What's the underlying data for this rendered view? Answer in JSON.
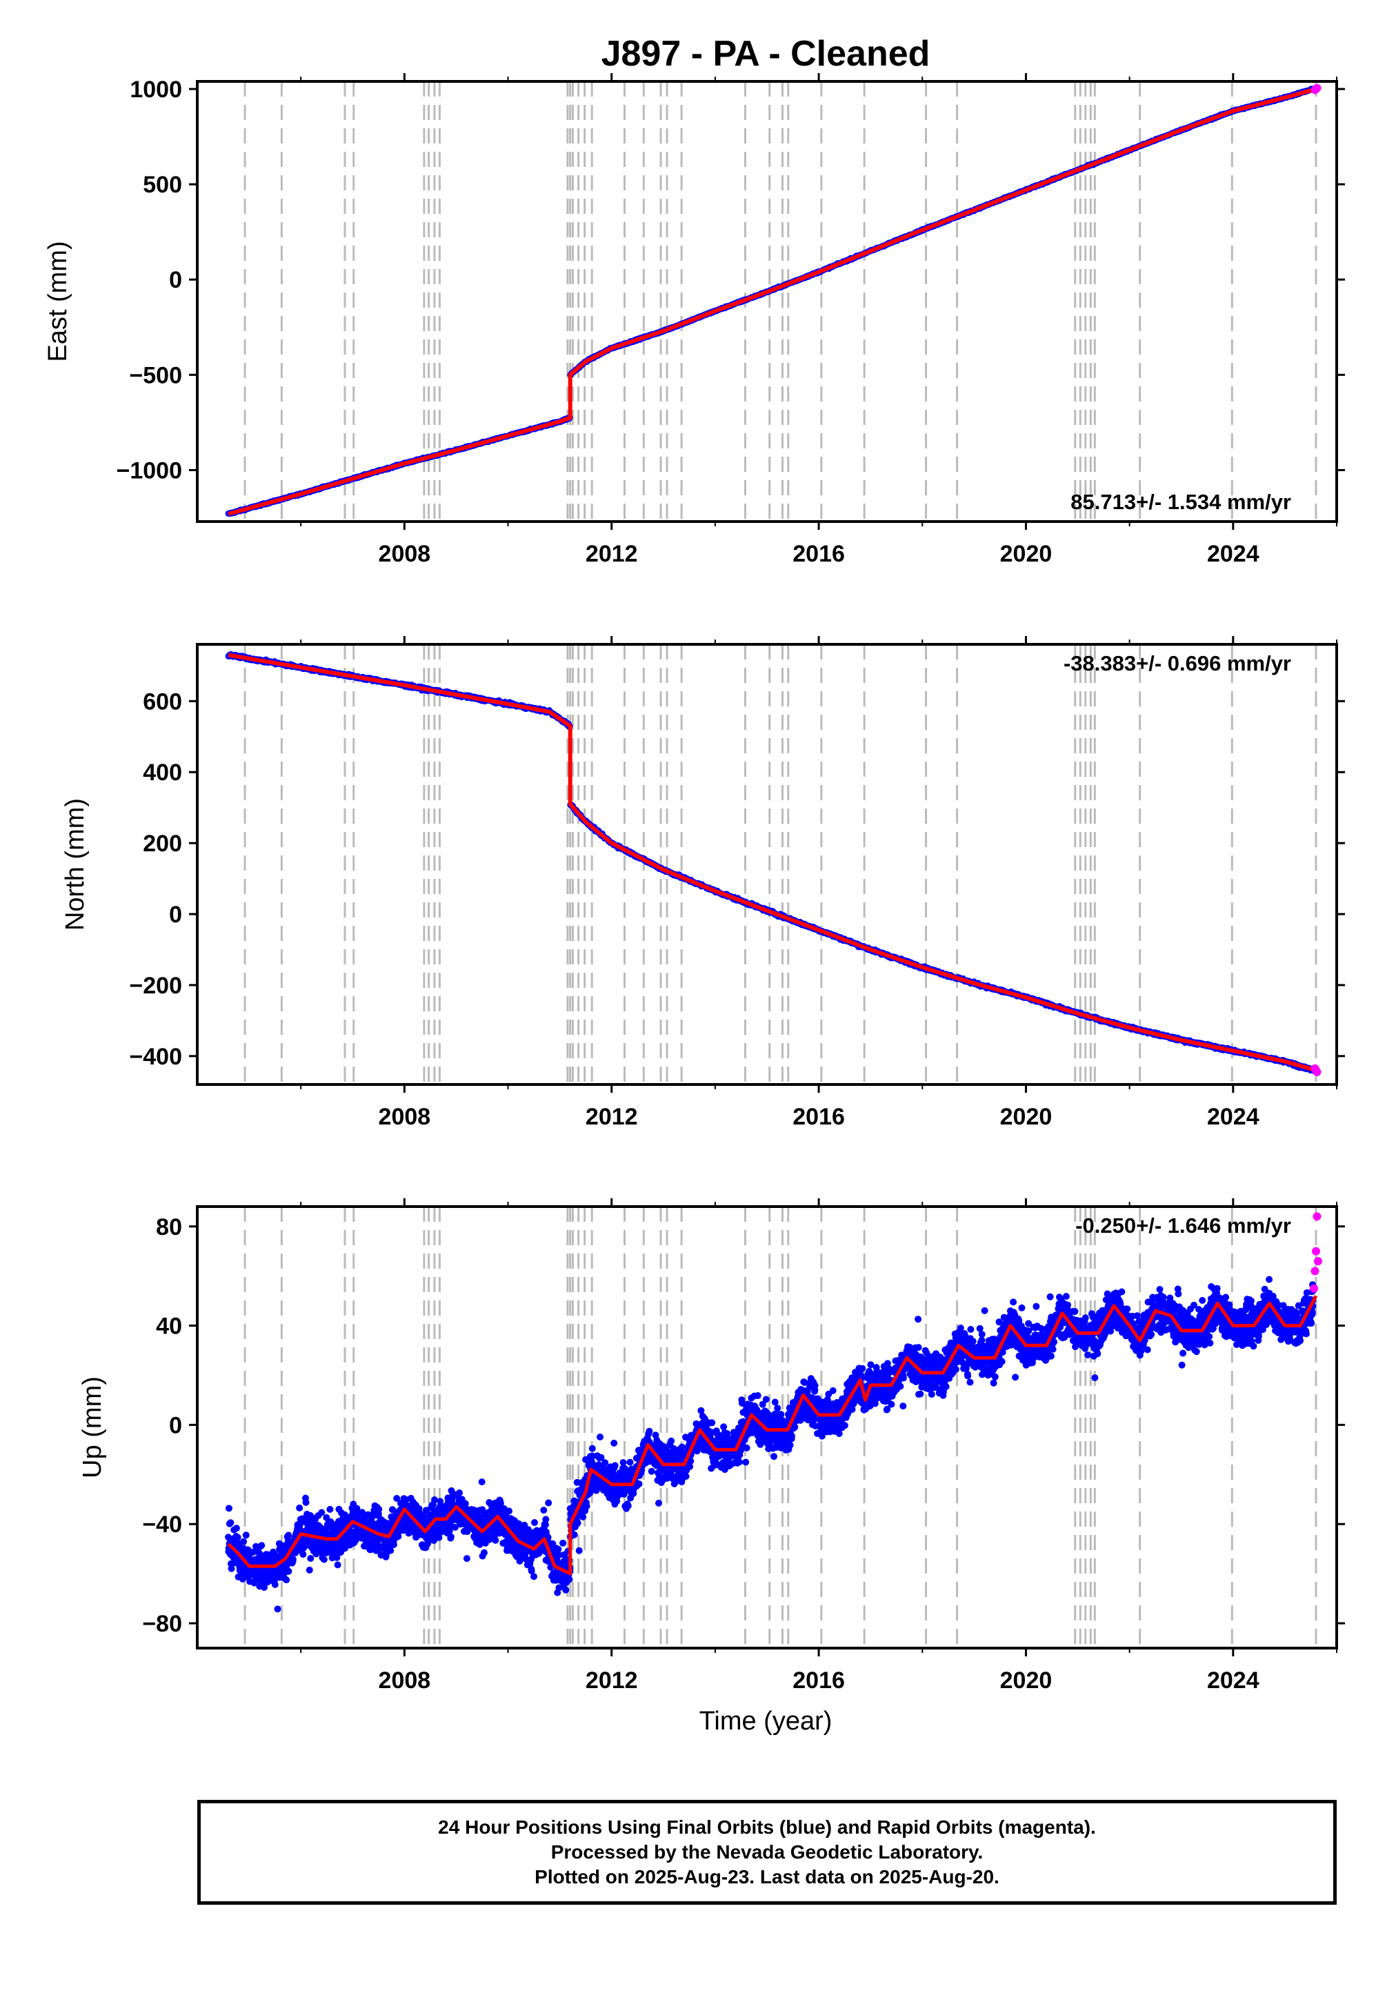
{
  "title": "J897  - PA - Cleaned",
  "x_axis_label": "Time (year)",
  "caption": {
    "line1": "24 Hour Positions Using Final Orbits (blue) and Rapid Orbits (magenta).",
    "line2": "Processed by the Nevada Geodetic Laboratory.",
    "line3": "Plotted on 2025-Aug-23. Last data on 2025-Aug-20."
  },
  "colors": {
    "final_orbits": "#0000ff",
    "rapid_orbits": "#ff00ff",
    "model_fit": "#ff0000",
    "event_lines": "#bbbbbb"
  },
  "chart_data": [
    {
      "type": "scatter",
      "panel": "east",
      "ylabel": "East (mm)",
      "xlim": [
        2004.0,
        2026.0
      ],
      "ylim": [
        -1270,
        1040
      ],
      "x_ticks": [
        2008,
        2012,
        2016,
        2020,
        2024
      ],
      "y_ticks": [
        -1000,
        -500,
        0,
        500,
        1000
      ],
      "y_tick_labels": [
        "−1000",
        "−500",
        "0",
        "500",
        "1000"
      ],
      "grid": false,
      "rate_label": "85.713+/- 1.534 mm/yr",
      "rate_label_position": "bottom-right",
      "series": [
        {
          "marker": "dots",
          "color": "final_orbits",
          "x": [
            2004.6,
            2005.0,
            2006.0,
            2007.0,
            2008.0,
            2009.0,
            2010.0,
            2011.0,
            2011.2,
            2011.2,
            2011.5,
            2012.0,
            2013.0,
            2014.0,
            2015.0,
            2016.0,
            2017.0,
            2018.0,
            2019.0,
            2020.0,
            2021.0,
            2022.0,
            2023.0,
            2024.0,
            2025.0,
            2025.55
          ],
          "y": [
            -1230,
            -1200,
            -1125,
            -1045,
            -965,
            -895,
            -820,
            -745,
            -725,
            -500,
            -430,
            -360,
            -270,
            -165,
            -65,
            40,
            150,
            260,
            365,
            470,
            575,
            680,
            785,
            885,
            955,
            1000
          ]
        },
        {
          "marker": "line",
          "color": "model_fit",
          "x": [
            2004.6,
            2005.0,
            2006.0,
            2007.0,
            2008.0,
            2009.0,
            2010.0,
            2011.0,
            2011.2,
            2011.2,
            2011.5,
            2012.0,
            2013.0,
            2014.0,
            2015.0,
            2016.0,
            2017.0,
            2018.0,
            2019.0,
            2020.0,
            2021.0,
            2022.0,
            2023.0,
            2024.0,
            2025.0,
            2025.6
          ],
          "y": [
            -1230,
            -1200,
            -1125,
            -1045,
            -965,
            -895,
            -820,
            -745,
            -725,
            -500,
            -430,
            -360,
            -270,
            -165,
            -65,
            40,
            150,
            260,
            365,
            470,
            575,
            680,
            785,
            885,
            955,
            1000
          ]
        },
        {
          "marker": "dots",
          "color": "rapid_orbits",
          "x": [
            2025.58,
            2025.6,
            2025.62
          ],
          "y": [
            995,
            1000,
            1005
          ]
        }
      ]
    },
    {
      "type": "scatter",
      "panel": "north",
      "ylabel": "North (mm)",
      "xlim": [
        2004.0,
        2026.0
      ],
      "ylim": [
        -480,
        760
      ],
      "x_ticks": [
        2008,
        2012,
        2016,
        2020,
        2024
      ],
      "y_ticks": [
        -400,
        -200,
        0,
        200,
        400,
        600
      ],
      "y_tick_labels": [
        "−400",
        "−200",
        "0",
        "200",
        "400",
        "600"
      ],
      "grid": false,
      "rate_label": "-38.383+/- 0.696 mm/yr",
      "rate_label_position": "top-right",
      "series": [
        {
          "marker": "dots",
          "color": "final_orbits",
          "x": [
            2004.6,
            2005.0,
            2006.0,
            2007.0,
            2008.0,
            2009.0,
            2010.0,
            2010.8,
            2011.0,
            2011.2,
            2011.2,
            2011.5,
            2012.0,
            2013.0,
            2014.0,
            2015.0,
            2016.0,
            2017.0,
            2018.0,
            2019.0,
            2020.0,
            2021.0,
            2022.0,
            2023.0,
            2024.0,
            2025.0,
            2025.55
          ],
          "y": [
            730,
            720,
            695,
            670,
            645,
            618,
            592,
            570,
            550,
            530,
            310,
            260,
            200,
            125,
            65,
            10,
            -45,
            -100,
            -150,
            -195,
            -235,
            -280,
            -320,
            -355,
            -385,
            -415,
            -440
          ]
        },
        {
          "marker": "line",
          "color": "model_fit",
          "x": [
            2004.6,
            2005.0,
            2006.0,
            2007.0,
            2008.0,
            2009.0,
            2010.0,
            2010.8,
            2011.0,
            2011.2,
            2011.2,
            2011.5,
            2012.0,
            2013.0,
            2014.0,
            2015.0,
            2016.0,
            2017.0,
            2018.0,
            2019.0,
            2020.0,
            2021.0,
            2022.0,
            2023.0,
            2024.0,
            2025.0,
            2025.6
          ],
          "y": [
            730,
            720,
            695,
            670,
            645,
            618,
            592,
            570,
            550,
            530,
            310,
            260,
            200,
            125,
            65,
            10,
            -45,
            -100,
            -150,
            -195,
            -235,
            -280,
            -320,
            -355,
            -385,
            -415,
            -440
          ]
        },
        {
          "marker": "dots",
          "color": "rapid_orbits",
          "x": [
            2025.58,
            2025.6,
            2025.62
          ],
          "y": [
            -435,
            -440,
            -445
          ]
        }
      ]
    },
    {
      "type": "scatter",
      "panel": "up",
      "ylabel": "Up (mm)",
      "xlim": [
        2004.0,
        2026.0
      ],
      "ylim": [
        -90,
        88
      ],
      "x_ticks": [
        2008,
        2012,
        2016,
        2020,
        2024
      ],
      "y_ticks": [
        -80,
        -40,
        0,
        40,
        80
      ],
      "y_tick_labels": [
        "−80",
        "−40",
        "0",
        "40",
        "80"
      ],
      "grid": false,
      "rate_label": "-0.250+/- 1.646 mm/yr",
      "rate_label_position": "top-right",
      "scatter_spread_mm": 14,
      "series": [
        {
          "marker": "dots",
          "color": "final_orbits",
          "x": [
            2004.6,
            2005.0,
            2006.0,
            2007.0,
            2008.0,
            2009.0,
            2010.0,
            2010.8,
            2011.2,
            2011.3,
            2012.0,
            2013.0,
            2014.0,
            2015.0,
            2016.0,
            2017.0,
            2018.0,
            2019.0,
            2020.0,
            2021.0,
            2022.0,
            2023.0,
            2024.0,
            2025.0,
            2025.55
          ],
          "y": [
            -48,
            -58,
            -45,
            -45,
            -40,
            -35,
            -40,
            -55,
            -60,
            -40,
            -24,
            -15,
            -8,
            -3,
            2,
            15,
            22,
            30,
            36,
            40,
            40,
            42,
            40,
            42,
            50
          ]
        },
        {
          "marker": "line",
          "color": "model_fit",
          "x": [
            2004.6,
            2004.8,
            2005.0,
            2005.5,
            2005.7,
            2006.0,
            2006.5,
            2006.7,
            2007.0,
            2007.5,
            2007.7,
            2008.0,
            2008.4,
            2008.6,
            2008.8,
            2009.0,
            2009.5,
            2009.8,
            2010.2,
            2010.5,
            2010.7,
            2010.9,
            2011.2,
            2011.2,
            2011.5,
            2011.6,
            2012.0,
            2012.4,
            2012.7,
            2013.0,
            2013.4,
            2013.7,
            2014.0,
            2014.4,
            2014.7,
            2015.0,
            2015.4,
            2015.7,
            2016.0,
            2016.4,
            2016.8,
            2016.9,
            2017.0,
            2017.4,
            2017.7,
            2018.0,
            2018.4,
            2018.7,
            2019.0,
            2019.4,
            2019.7,
            2020.0,
            2020.4,
            2020.7,
            2021.0,
            2021.4,
            2021.7,
            2022.0,
            2022.2,
            2022.5,
            2022.8,
            2023.0,
            2023.4,
            2023.7,
            2024.0,
            2024.4,
            2024.7,
            2025.0,
            2025.3,
            2025.6
          ],
          "y": [
            -48,
            -52,
            -57,
            -57,
            -54,
            -44,
            -46,
            -46,
            -39,
            -44,
            -45,
            -34,
            -43,
            -38,
            -38,
            -33,
            -43,
            -37,
            -47,
            -50,
            -46,
            -57,
            -60,
            -40,
            -27,
            -18,
            -24,
            -24,
            -8,
            -16,
            -16,
            -2,
            -10,
            -10,
            4,
            -2,
            -2,
            12,
            4,
            4,
            18,
            10,
            16,
            16,
            27,
            21,
            21,
            32,
            27,
            27,
            40,
            32,
            32,
            45,
            37,
            37,
            48,
            40,
            34,
            46,
            44,
            38,
            38,
            49,
            40,
            40,
            49,
            40,
            40,
            52
          ]
        },
        {
          "marker": "dots",
          "color": "rapid_orbits",
          "x": [
            2025.56,
            2025.58,
            2025.6,
            2025.62,
            2025.64
          ],
          "y": [
            55,
            62,
            70,
            84,
            66
          ]
        }
      ]
    }
  ],
  "event_lines_year": [
    2004.92,
    2005.63,
    2006.85,
    2007.02,
    2008.38,
    2008.47,
    2008.58,
    2008.68,
    2011.15,
    2011.2,
    2011.25,
    2011.36,
    2011.48,
    2011.62,
    2012.25,
    2012.62,
    2012.95,
    2013.07,
    2013.35,
    2014.58,
    2015.05,
    2015.3,
    2015.41,
    2016.05,
    2016.88,
    2018.07,
    2018.67,
    2020.95,
    2021.05,
    2021.15,
    2021.25,
    2021.33,
    2022.2,
    2023.98,
    2025.6
  ]
}
